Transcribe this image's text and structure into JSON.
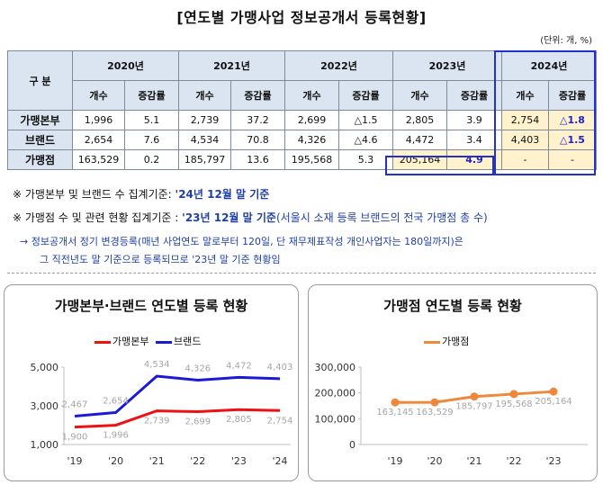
{
  "title": "[연도별 가맹사업 정보공개서 등록현황]",
  "unit": "(단위: 개, %)",
  "table": {
    "corner": "구 분",
    "years": [
      "2020년",
      "2021년",
      "2022년",
      "2023년",
      "2024년"
    ],
    "subheads": [
      "개수",
      "증감률"
    ],
    "rows": [
      {
        "label": "가맹본부",
        "cells": [
          "1,996",
          "5.1",
          "2,739",
          "37.2",
          "2,699",
          "△1.5",
          "2,805",
          "3.9",
          "2,754",
          "△1.8"
        ]
      },
      {
        "label": "브랜드",
        "cells": [
          "2,654",
          "7.6",
          "4,534",
          "70.8",
          "4,326",
          "△4.6",
          "4,472",
          "3.4",
          "4,403",
          "△1.5"
        ]
      },
      {
        "label": "가맹점",
        "cells": [
          "163,529",
          "0.2",
          "185,797",
          "13.6",
          "195,568",
          "5.3",
          "205,164",
          "4.9",
          "-",
          "-"
        ]
      }
    ]
  },
  "notes": {
    "n1_prefix": "※ 가맹본부 및 브랜드 수 집계기준: ",
    "n1_em": "'24년 12월 말 기준",
    "n2_prefix": "※ 가맹점 수 및 관련 현황 집계기준 : ",
    "n2_em": "'23년 12월 말 기준",
    "n2_suffix": "(서울시 소재 등록 브랜드의 전국 가맹점 총 수)",
    "n3_line1": "→ 정보공개서 정기 변경등록(매년 사업연도 말로부터 120일, 단 재무제표작성 개인사업자는 180일까지)은",
    "n3_line2": "그 직전년도 말 기준으로 등록되므로 '23년 말 기준 현황임"
  },
  "chart_data": [
    {
      "type": "line",
      "title": "가맹본부·브랜드 연도별 등록 현황",
      "categories": [
        "'19",
        "'20",
        "'21",
        "'22",
        "'23",
        "'24"
      ],
      "series": [
        {
          "name": "가맹본부",
          "color": "#ee1111",
          "values": [
            1900,
            1996,
            2739,
            2699,
            2805,
            2754
          ],
          "labels": [
            "1,900",
            "1,996",
            "2,739",
            "2,699",
            "2,805",
            "2,754"
          ]
        },
        {
          "name": "브랜드",
          "color": "#1a1ad6",
          "values": [
            2467,
            2654,
            4534,
            4326,
            4472,
            4403
          ],
          "labels": [
            "2,467",
            "2,654",
            "4,534",
            "4,326",
            "4,472",
            "4,403"
          ]
        }
      ],
      "yticks": [
        1000,
        3000,
        5000
      ],
      "ytick_labels": [
        "1,000",
        "3,000",
        "5,000"
      ],
      "ylim": [
        1000,
        5000
      ],
      "legend": "top-center"
    },
    {
      "type": "line",
      "title": "가맹점 연도별 등록 현황",
      "categories": [
        "'19",
        "'20",
        "'21",
        "'22",
        "'23"
      ],
      "series": [
        {
          "name": "가맹점",
          "color": "#f0883a",
          "values": [
            163145,
            163529,
            185797,
            195568,
            205164
          ],
          "labels": [
            "163,145",
            "163,529",
            "185,797",
            "195,568",
            "205,164"
          ]
        }
      ],
      "yticks": [
        0,
        100000,
        200000,
        300000
      ],
      "ytick_labels": [
        "0",
        "100,000",
        "200,000",
        "300,000"
      ],
      "ylim": [
        0,
        300000
      ],
      "legend": "top-center"
    }
  ]
}
